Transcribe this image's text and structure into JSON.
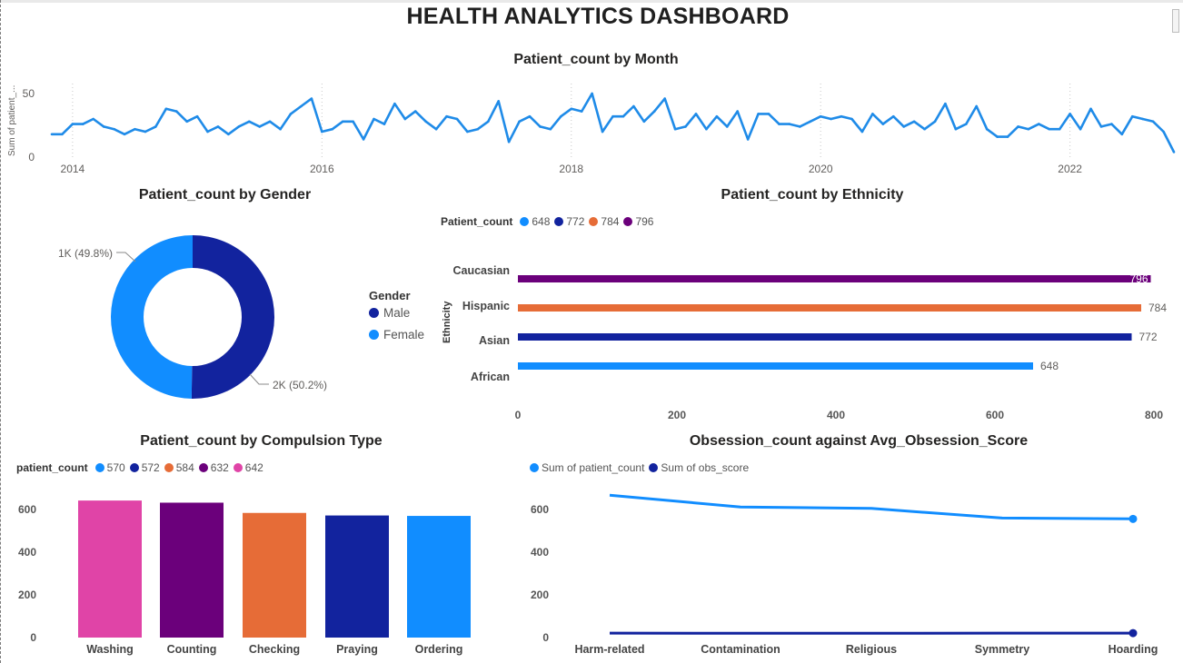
{
  "dashboard": {
    "title": "HEALTH ANALYTICS DASHBOARD"
  },
  "colors": {
    "light_blue": "#118DFF",
    "dark_blue": "#12239E",
    "orange": "#E66C37",
    "purple": "#6B007B",
    "pink": "#E044A7",
    "line_blue": "#1F8BE8"
  },
  "chart_data": [
    {
      "id": "monthly",
      "type": "line",
      "title": "Patient_count by Month",
      "ylabel": "Sum of patient_...",
      "ylim": [
        0,
        50
      ],
      "y_ticks": [
        "0",
        "50"
      ],
      "x_ticks": [
        "2014",
        "2016",
        "2018",
        "2020",
        "2022"
      ],
      "x_start": "2013-11",
      "series": [
        {
          "values": [
            18,
            18,
            26,
            26,
            30,
            24,
            22,
            18,
            22,
            20,
            24,
            38,
            36,
            28,
            32,
            20,
            24,
            18,
            24,
            28,
            24,
            28,
            22,
            34,
            40,
            46,
            20,
            22,
            28,
            28,
            14,
            30,
            26,
            42,
            30,
            36,
            28,
            22,
            32,
            30,
            20,
            22,
            28,
            44,
            12,
            28,
            32,
            24,
            22,
            32,
            38,
            36,
            50,
            20,
            32,
            32,
            40,
            28,
            36,
            46,
            22,
            24,
            34,
            22,
            32,
            24,
            36,
            14,
            34,
            34,
            26,
            26,
            24,
            28,
            32,
            30,
            32,
            30,
            20,
            34,
            26,
            32,
            24,
            28,
            22,
            28,
            42,
            22,
            26,
            40,
            22,
            16,
            16,
            24,
            22,
            26,
            22,
            22,
            34,
            22,
            38,
            24,
            26,
            18,
            32,
            30,
            28,
            20,
            4
          ]
        }
      ]
    },
    {
      "id": "gender",
      "type": "pie",
      "title": "Patient_count by Gender",
      "legend_title": "Gender",
      "slices": [
        {
          "label": "Male",
          "percent": 50.2,
          "data_label": "2K (50.2%)"
        },
        {
          "label": "Female",
          "percent": 49.8,
          "data_label": "1K (49.8%)"
        }
      ]
    },
    {
      "id": "ethnicity",
      "type": "bar",
      "orientation": "horizontal",
      "title": "Patient_count by Ethnicity",
      "ylabel": "Ethnicity",
      "legend_title": "Patient_count",
      "legend": [
        "648",
        "772",
        "784",
        "796"
      ],
      "categories": [
        "Caucasian",
        "Hispanic",
        "Asian",
        "African"
      ],
      "values": [
        796,
        784,
        772,
        648
      ],
      "data_labels": [
        "796",
        "784",
        "772",
        "648"
      ],
      "xlim": [
        0,
        800
      ],
      "x_ticks": [
        "0",
        "200",
        "400",
        "600",
        "800"
      ]
    },
    {
      "id": "compulsion",
      "type": "bar",
      "title": "Patient_count by Compulsion Type",
      "legend_title": "patient_count",
      "legend": [
        "570",
        "572",
        "584",
        "632",
        "642"
      ],
      "categories": [
        "Washing",
        "Counting",
        "Checking",
        "Praying",
        "Ordering"
      ],
      "values": [
        642,
        632,
        584,
        572,
        570
      ],
      "ylim": [
        0,
        700
      ],
      "y_ticks": [
        "0",
        "200",
        "400",
        "600"
      ]
    },
    {
      "id": "obsession",
      "type": "line",
      "title": "Obsession_count against Avg_Obsession_Score",
      "categories": [
        "Harm-related",
        "Contamination",
        "Religious",
        "Symmetry",
        "Hoarding"
      ],
      "ylim": [
        0,
        700
      ],
      "y_ticks": [
        "0",
        "200",
        "400",
        "600"
      ],
      "series": [
        {
          "name": "Sum of patient_count",
          "values": [
            667,
            612,
            605,
            560,
            556
          ]
        },
        {
          "name": "Sum of obs_score",
          "values": [
            21,
            20,
            20,
            21,
            21
          ]
        }
      ]
    }
  ]
}
